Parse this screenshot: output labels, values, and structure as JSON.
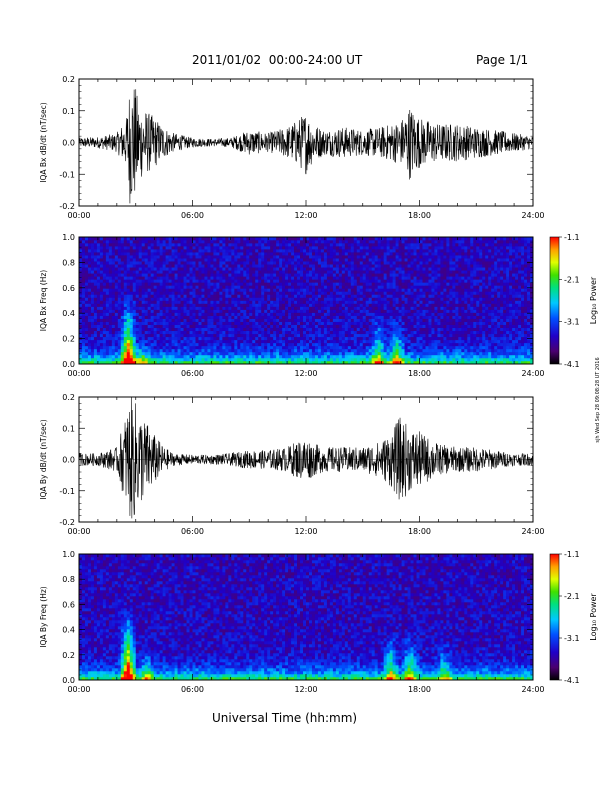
{
  "header": {
    "title": "2011/01/02  00:00-24:00 UT",
    "page": "Page 1/1"
  },
  "x_axis_label": "Universal Time (hh:mm)",
  "stamp": "sjh Wed Sep 28 09:08:28 UT 2016",
  "chart_data": [
    {
      "type": "line",
      "ylabel": "IQA Bx dB/dt (nT/sec)",
      "xlim": [
        0,
        24
      ],
      "ylim": [
        -0.2,
        0.2
      ],
      "x_ticks": [
        "00:00",
        "06:00",
        "12:00",
        "18:00",
        "24:00"
      ],
      "y_ticks": [
        "-0.2",
        "-0.1",
        "0.0",
        "0.1",
        "0.2"
      ],
      "envelope": {
        "x_hours": [
          0,
          1,
          2,
          2.5,
          2.7,
          2.9,
          3.2,
          3.6,
          4.0,
          4.5,
          5,
          6,
          7,
          8,
          9,
          10,
          11,
          11.5,
          12,
          12.4,
          13,
          14,
          15,
          16,
          17,
          17.5,
          18,
          19,
          20,
          21,
          22,
          23,
          24
        ],
        "amp_nT_s": [
          0.015,
          0.018,
          0.03,
          0.08,
          0.2,
          0.2,
          0.12,
          0.1,
          0.08,
          0.05,
          0.03,
          0.015,
          0.012,
          0.015,
          0.04,
          0.03,
          0.05,
          0.07,
          0.1,
          0.06,
          0.04,
          0.05,
          0.04,
          0.05,
          0.07,
          0.12,
          0.08,
          0.06,
          0.06,
          0.05,
          0.04,
          0.03,
          0.02
        ]
      }
    },
    {
      "type": "heatmap",
      "ylabel": "IQA Bx Freq (Hz)",
      "xlim": [
        0,
        24
      ],
      "ylim": [
        0.0,
        1.0
      ],
      "x_ticks": [
        "00:00",
        "06:00",
        "12:00",
        "18:00",
        "24:00"
      ],
      "y_ticks": [
        "0.0",
        "0.2",
        "0.4",
        "0.6",
        "0.8",
        "1.0"
      ],
      "colorbar": {
        "label": "Log₁₀ Power",
        "ticks": [
          "-1.1",
          "-2.1",
          "-3.1",
          "-4.1"
        ],
        "range": [
          -4.1,
          -1.1
        ]
      },
      "events": [
        {
          "t_hours": 2.6,
          "fmax_hz": 0.55,
          "strength": 0.9
        },
        {
          "t_hours": 3.3,
          "fmax_hz": 0.2,
          "strength": 0.4
        },
        {
          "t_hours": 15.8,
          "fmax_hz": 0.4,
          "strength": 0.5
        },
        {
          "t_hours": 16.8,
          "fmax_hz": 0.4,
          "strength": 0.5
        }
      ]
    },
    {
      "type": "line",
      "ylabel": "IQA By dB/dt (nT/sec)",
      "xlim": [
        0,
        24
      ],
      "ylim": [
        -0.2,
        0.2
      ],
      "x_ticks": [
        "00:00",
        "06:00",
        "12:00",
        "18:00",
        "24:00"
      ],
      "y_ticks": [
        "-0.2",
        "-0.1",
        "0.0",
        "0.1",
        "0.2"
      ],
      "envelope": {
        "x_hours": [
          0,
          1,
          2,
          2.5,
          2.7,
          2.9,
          3.2,
          3.6,
          4.0,
          4.5,
          5,
          6,
          7,
          8,
          9,
          10,
          11,
          11.5,
          12,
          12.5,
          13,
          14,
          15,
          16,
          16.5,
          17,
          17.5,
          18,
          18.5,
          19,
          20,
          21,
          22,
          23,
          24
        ],
        "amp_nT_s": [
          0.02,
          0.02,
          0.04,
          0.15,
          0.2,
          0.2,
          0.15,
          0.12,
          0.08,
          0.04,
          0.02,
          0.015,
          0.015,
          0.02,
          0.03,
          0.03,
          0.04,
          0.06,
          0.07,
          0.05,
          0.04,
          0.04,
          0.04,
          0.06,
          0.09,
          0.14,
          0.1,
          0.09,
          0.07,
          0.05,
          0.04,
          0.04,
          0.03,
          0.02,
          0.02
        ]
      }
    },
    {
      "type": "heatmap",
      "ylabel": "IQA By Freq (Hz)",
      "xlim": [
        0,
        24
      ],
      "ylim": [
        0.0,
        1.0
      ],
      "x_ticks": [
        "00:00",
        "06:00",
        "12:00",
        "18:00",
        "24:00"
      ],
      "y_ticks": [
        "0.0",
        "0.2",
        "0.4",
        "0.6",
        "0.8",
        "1.0"
      ],
      "colorbar": {
        "label": "Log₁₀ Power",
        "ticks": [
          "-1.1",
          "-2.1",
          "-3.1",
          "-4.1"
        ],
        "range": [
          -4.1,
          -1.1
        ]
      },
      "events": [
        {
          "t_hours": 2.6,
          "fmax_hz": 0.6,
          "strength": 0.9
        },
        {
          "t_hours": 3.6,
          "fmax_hz": 0.25,
          "strength": 0.4
        },
        {
          "t_hours": 16.5,
          "fmax_hz": 0.4,
          "strength": 0.5
        },
        {
          "t_hours": 17.5,
          "fmax_hz": 0.4,
          "strength": 0.5
        },
        {
          "t_hours": 19.3,
          "fmax_hz": 0.35,
          "strength": 0.35
        }
      ]
    }
  ]
}
